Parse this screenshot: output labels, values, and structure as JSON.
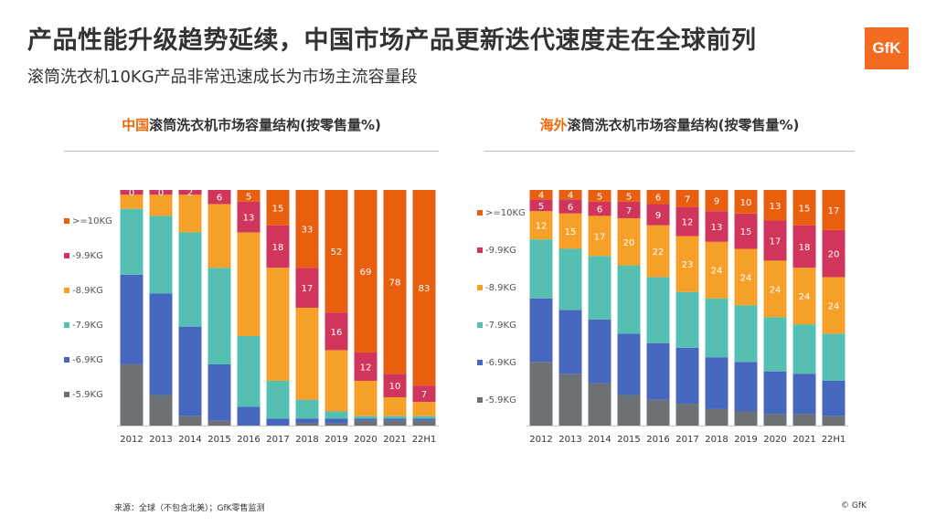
{
  "header": {
    "title": "产品性能升级趋势延续，中国市场产品更新迭代速度走在全球前列",
    "subtitle": "滚筒洗衣机10KG产品非常迅速成长为市场主流容量段",
    "logo_text": "GfK"
  },
  "footer": {
    "source": "来源：全球（不包含北美）；GfK零售监测",
    "copyright": "© GfK"
  },
  "colors": {
    ">=10KG": "#e8600f",
    "-9.9KG": "#d0365b",
    "-8.9KG": "#f6a02a",
    "-7.9KG": "#55bfb1",
    "-6.9KG": "#4766c0",
    "-5.9KG": "#6b7276"
  },
  "chart_data": [
    {
      "type": "bar",
      "stacked": true,
      "percent": true,
      "title_highlight": "中国",
      "title_rest": "滚筒洗衣机市场容量结构(按零售量%)",
      "categories": [
        "2012",
        "2013",
        "2014",
        "2015",
        "2016",
        "2017",
        "2018",
        "2019",
        "2020",
        "2021",
        "22H1"
      ],
      "ylim": [
        0,
        100
      ],
      "legend_position": "left",
      "series": [
        {
          "name": ">=10KG",
          "values": [
            0,
            0,
            0,
            0,
            5,
            15,
            33,
            52,
            69,
            78,
            83
          ]
        },
        {
          "name": "-9.9KG",
          "values": [
            2,
            2,
            2,
            6,
            13,
            18,
            17,
            16,
            12,
            10,
            7
          ]
        },
        {
          "name": "-8.9KG",
          "values": [
            6,
            9,
            16,
            27,
            44,
            48,
            39,
            26,
            15,
            8,
            6
          ]
        },
        {
          "name": "-7.9KG",
          "values": [
            28,
            33,
            40,
            41,
            30,
            16,
            8,
            3,
            1,
            1,
            1
          ]
        },
        {
          "name": "-6.9KG",
          "values": [
            38,
            43,
            38,
            24,
            8,
            3,
            2,
            2,
            1,
            1,
            1
          ]
        },
        {
          "name": "-5.9KG",
          "values": [
            26,
            13,
            4,
            2,
            0,
            0,
            1,
            1,
            2,
            2,
            2
          ]
        }
      ],
      "labels": [
        {
          "series": ">=10KG",
          "values": [
            "0",
            "0",
            "",
            "",
            "5",
            "15",
            "33",
            "52",
            "69",
            "78",
            "83"
          ]
        },
        {
          "series": "-9.9KG",
          "values": [
            "",
            "",
            "2",
            "6",
            "13",
            "18",
            "17",
            "16",
            "12",
            "10",
            "7"
          ]
        }
      ]
    },
    {
      "type": "bar",
      "stacked": true,
      "percent": true,
      "title_highlight": "海外",
      "title_rest": "滚筒洗衣机市场容量结构(按零售量%)",
      "categories": [
        "2012",
        "2013",
        "2014",
        "2015",
        "2016",
        "2017",
        "2018",
        "2019",
        "2020",
        "2021",
        "22H1"
      ],
      "ylim": [
        0,
        100
      ],
      "legend_position": "left",
      "series": [
        {
          "name": ">=10KG",
          "values": [
            4,
            4,
            5,
            5,
            6,
            7,
            9,
            10,
            13,
            15,
            17
          ]
        },
        {
          "name": "-9.9KG",
          "values": [
            5,
            6,
            6,
            7,
            9,
            12,
            13,
            15,
            17,
            18,
            20
          ]
        },
        {
          "name": "-8.9KG",
          "values": [
            12,
            15,
            17,
            20,
            22,
            23,
            24,
            24,
            24,
            24,
            24
          ]
        },
        {
          "name": "-7.9KG",
          "values": [
            25,
            26,
            27,
            29,
            28,
            23,
            25,
            24,
            23,
            21,
            20
          ]
        },
        {
          "name": "-6.9KG",
          "values": [
            27,
            27,
            27,
            26,
            24,
            23,
            22,
            21,
            18,
            17,
            15
          ]
        },
        {
          "name": "-5.9KG",
          "values": [
            27,
            22,
            18,
            13,
            11,
            9,
            7,
            6,
            5,
            5,
            4
          ]
        }
      ],
      "labels": [
        {
          "series": ">=10KG",
          "values": [
            "4",
            "4",
            "5",
            "5",
            "6",
            "7",
            "9",
            "10",
            "13",
            "15",
            "17"
          ]
        },
        {
          "series": "-9.9KG",
          "values": [
            "5",
            "6",
            "6",
            "7",
            "9",
            "12",
            "13",
            "15",
            "17",
            "18",
            "20"
          ]
        },
        {
          "series": "-8.9KG",
          "values": [
            "12",
            "15",
            "17",
            "20",
            "22",
            "23",
            "24",
            "24",
            "24",
            "24",
            "24"
          ]
        }
      ]
    }
  ]
}
